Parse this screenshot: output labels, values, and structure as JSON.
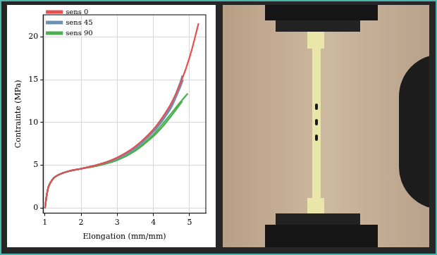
{
  "chart_data": {
    "type": "line",
    "x_label": "Elongation (mm/mm)",
    "y_label": "Contrainte (MPa)",
    "xlim": [
      0.95,
      5.45
    ],
    "xticks": [
      1,
      2,
      3,
      4,
      5
    ],
    "ylim": [
      -0.6,
      22.6
    ],
    "yticks": [
      0,
      5,
      10,
      15,
      20
    ],
    "grid": true,
    "legend": "upper left",
    "series": [
      {
        "name": "sens 0",
        "color": "#e8504f",
        "x": [
          1,
          1.05,
          1.1,
          1.2,
          1.3,
          1.5,
          1.75,
          2,
          2.5,
          3,
          3.5,
          4,
          4.25,
          4.5,
          4.75,
          5,
          5.25
        ],
        "values": [
          0,
          1.5,
          2.5,
          3.3,
          3.7,
          4.1,
          4.4,
          4.6,
          5.1,
          5.9,
          7.2,
          9.2,
          10.6,
          12.3,
          14.6,
          17.6,
          21.6
        ]
      },
      {
        "name": "sens 45",
        "color": "#6d8fb3",
        "x": [
          1,
          1.05,
          1.1,
          1.2,
          1.3,
          1.5,
          1.75,
          2,
          2.5,
          3,
          3.5,
          4,
          4.25,
          4.5,
          4.75,
          4.8
        ],
        "values": [
          0,
          1.5,
          2.5,
          3.3,
          3.7,
          4.1,
          4.4,
          4.6,
          5.1,
          5.9,
          7.1,
          9.1,
          10.4,
          12.1,
          14.8,
          15.5
        ]
      },
      {
        "name": "sens 45",
        "color": "#6d8fb3",
        "x": [
          1,
          1.05,
          1.1,
          1.2,
          1.3,
          1.5,
          1.75,
          2,
          2.5,
          3,
          3.5,
          4,
          4.25,
          4.5,
          4.75,
          4.82
        ],
        "values": [
          0,
          1.5,
          2.5,
          3.3,
          3.7,
          4.1,
          4.4,
          4.6,
          5.1,
          5.8,
          7.0,
          8.9,
          10.2,
          11.8,
          14.2,
          15.0
        ]
      },
      {
        "name": "sens 90",
        "color": "#4caf50",
        "x": [
          1,
          1.05,
          1.1,
          1.2,
          1.3,
          1.5,
          1.75,
          2,
          2.5,
          3,
          3.5,
          4,
          4.25,
          4.5,
          4.8
        ],
        "values": [
          0,
          1.5,
          2.5,
          3.3,
          3.7,
          4.1,
          4.4,
          4.6,
          5.0,
          5.6,
          6.7,
          8.4,
          9.5,
          10.8,
          12.5
        ]
      },
      {
        "name": "sens 90",
        "color": "#4caf50",
        "x": [
          1,
          1.05,
          1.1,
          1.2,
          1.3,
          1.5,
          1.75,
          2,
          2.5,
          3,
          3.5,
          4,
          4.25,
          4.5,
          4.75,
          4.95
        ],
        "values": [
          0,
          1.5,
          2.5,
          3.3,
          3.7,
          4.1,
          4.4,
          4.6,
          5.0,
          5.6,
          6.8,
          8.6,
          9.8,
          11.1,
          12.4,
          13.4
        ]
      }
    ]
  }
}
